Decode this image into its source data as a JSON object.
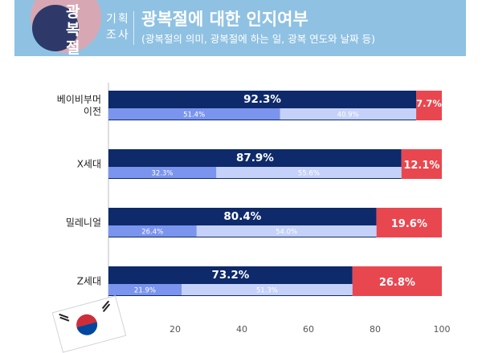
{
  "header": {
    "badge_chars": [
      "광",
      "복",
      "절"
    ],
    "survey_tag_line1": "기획",
    "survey_tag_line2": "조사",
    "title": "광복절에 대한 인지여부",
    "subtitle": "(광복절의 의미, 광복절에 하는 일, 광복 연도와 날짜 등)"
  },
  "colors": {
    "header_bg": "#8fc1e2",
    "aware": "#0e2a6b",
    "unaware": "#e9474f",
    "sub1": "#7b95ee",
    "sub2": "#c5d1f8"
  },
  "chart_data": {
    "type": "bar",
    "orientation": "horizontal",
    "stacked": true,
    "categories": [
      "베이비부머\n이전",
      "X세대",
      "밀레니얼",
      "Z세대"
    ],
    "series": [
      {
        "values": [
          92.3,
          87.9,
          80.4,
          73.2
        ],
        "labels": [
          "92.3%",
          "87.9%",
          "80.4%",
          "73.2%"
        ],
        "color": "#0e2a6b"
      },
      {
        "values": [
          7.7,
          12.1,
          19.6,
          26.8
        ],
        "labels": [
          "7.7%",
          "12.1%",
          "19.6%",
          "26.8%"
        ],
        "color": "#e9474f"
      }
    ],
    "sub_series": [
      {
        "values": [
          51.4,
          32.3,
          26.4,
          21.9
        ],
        "labels": [
          "51.4%",
          "32.3%",
          "26.4%",
          "21.9%"
        ],
        "color": "#7b95ee"
      },
      {
        "values": [
          40.9,
          55.6,
          54.0,
          51.3
        ],
        "labels": [
          "40.9%",
          "55.6%",
          "54.0%",
          "51.3%"
        ],
        "color": "#c5d1f8"
      }
    ],
    "xlim": [
      0,
      100
    ],
    "xticks": [
      20,
      40,
      60,
      80,
      100
    ],
    "grid": false,
    "legend": "none"
  }
}
